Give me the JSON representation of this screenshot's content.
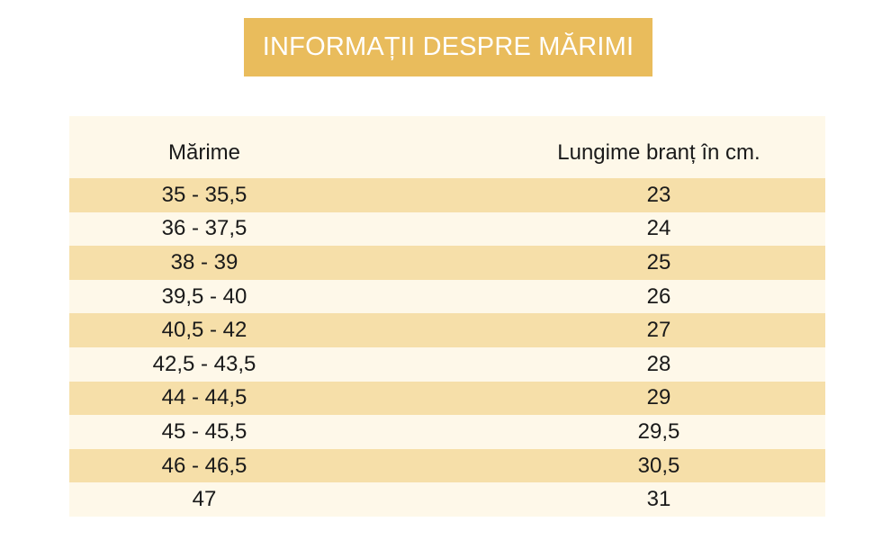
{
  "title": "INFORMAȚII DESPRE MĂRIMI",
  "table": {
    "headers": [
      "Mărime",
      "Lungime branț în cm."
    ],
    "rows": [
      {
        "size": "35 - 35,5",
        "length": "23"
      },
      {
        "size": "36 - 37,5",
        "length": "24"
      },
      {
        "size": "38 - 39",
        "length": "25"
      },
      {
        "size": "39,5 - 40",
        "length": "26"
      },
      {
        "size": "40,5 - 42",
        "length": "27"
      },
      {
        "size": "42,5 - 43,5",
        "length": "28"
      },
      {
        "size": "44 - 44,5",
        "length": "29"
      },
      {
        "size": "45 - 45,5",
        "length": "29,5"
      },
      {
        "size": "46 - 46,5",
        "length": "30,5"
      },
      {
        "size": "47",
        "length": "31"
      }
    ]
  },
  "colors": {
    "banner": "#e9bc5c",
    "row_shaded": "#f6dfa9",
    "row_light": "#fef8e9"
  }
}
